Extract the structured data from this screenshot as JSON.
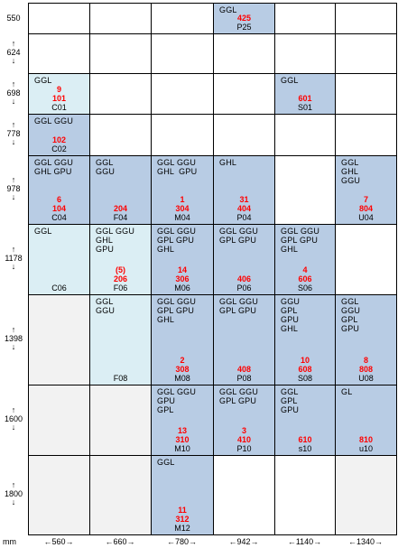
{
  "unit_label": "mm",
  "row_labels": [
    "550",
    "624",
    "698",
    "778",
    "978",
    "1178",
    "1398",
    "1600",
    "1800"
  ],
  "col_labels": [
    "←560→",
    "←660→",
    "←780→",
    "←942→",
    "←1140→",
    "←1340→"
  ],
  "cells": [
    {
      "row": 0,
      "col": 3,
      "fill": "blue",
      "tags": [
        "GGL"
      ],
      "red": [
        "425"
      ],
      "code": "P25"
    },
    {
      "row": 2,
      "col": 0,
      "fill": "light",
      "tags": [
        "GGL"
      ],
      "red": [
        "9",
        "101"
      ],
      "code": "C01"
    },
    {
      "row": 2,
      "col": 4,
      "fill": "blue",
      "tags": [
        "GGL"
      ],
      "red": [
        "601"
      ],
      "code": "S01"
    },
    {
      "row": 3,
      "col": 0,
      "fill": "blue",
      "tags": [
        "GGL GGU"
      ],
      "red": [
        "102"
      ],
      "code": "C02"
    },
    {
      "row": 4,
      "col": 0,
      "fill": "blue",
      "tags": [
        "GGL GGU",
        "GHL GPU"
      ],
      "red": [
        "6",
        "104"
      ],
      "code": "C04"
    },
    {
      "row": 4,
      "col": 1,
      "fill": "blue",
      "tags": [
        "GGL",
        "GGU"
      ],
      "red": [
        "204"
      ],
      "code": "F04"
    },
    {
      "row": 4,
      "col": 2,
      "fill": "blue",
      "tags": [
        "GGL GGU",
        "GHL  GPU"
      ],
      "red": [
        "1",
        "304"
      ],
      "code": "M04"
    },
    {
      "row": 4,
      "col": 3,
      "fill": "blue",
      "tags": [
        "GHL"
      ],
      "red": [
        "31",
        "404"
      ],
      "code": "P04"
    },
    {
      "row": 4,
      "col": 5,
      "fill": "blue",
      "tags": [
        "GGL",
        "GHL",
        "GGU"
      ],
      "red": [
        "7",
        "804"
      ],
      "code": "U04"
    },
    {
      "row": 5,
      "col": 0,
      "fill": "light",
      "tags": [
        "GGL"
      ],
      "red": [],
      "code": "C06"
    },
    {
      "row": 5,
      "col": 1,
      "fill": "light",
      "tags": [
        "GGL GGU",
        "GHL",
        "GPU"
      ],
      "red": [
        "(5)",
        "206"
      ],
      "code": "F06"
    },
    {
      "row": 5,
      "col": 2,
      "fill": "blue",
      "tags": [
        "GGL GGU",
        "GPL GPU",
        "GHL"
      ],
      "red": [
        "14",
        "306"
      ],
      "code": "M06"
    },
    {
      "row": 5,
      "col": 3,
      "fill": "blue",
      "tags": [
        "GGL GGU",
        "GPL GPU"
      ],
      "red": [
        "406"
      ],
      "code": "P06"
    },
    {
      "row": 5,
      "col": 4,
      "fill": "blue",
      "tags": [
        "GGL GGU",
        "GPL GPU",
        "GHL"
      ],
      "red": [
        "4",
        "606"
      ],
      "code": "S06"
    },
    {
      "row": 6,
      "col": 0,
      "fill": "gray",
      "tags": [],
      "red": [],
      "code": ""
    },
    {
      "row": 6,
      "col": 1,
      "fill": "light",
      "tags": [
        "GGL",
        "GGU"
      ],
      "red": [],
      "code": "F08"
    },
    {
      "row": 6,
      "col": 2,
      "fill": "blue",
      "tags": [
        "GGL GGU",
        "GPL GPU",
        "GHL"
      ],
      "red": [
        "2",
        "308"
      ],
      "code": "M08"
    },
    {
      "row": 6,
      "col": 3,
      "fill": "blue",
      "tags": [
        "GGL GGU",
        "GPL GPU"
      ],
      "red": [
        "408"
      ],
      "code": "P08"
    },
    {
      "row": 6,
      "col": 4,
      "fill": "blue",
      "tags": [
        "GGU",
        "GPL",
        "GPU",
        "GHL"
      ],
      "red": [
        "10",
        "608"
      ],
      "code": "S08"
    },
    {
      "row": 6,
      "col": 5,
      "fill": "blue",
      "tags": [
        "GGL",
        "GGU",
        "GPL",
        "GPU"
      ],
      "red": [
        "8",
        "808"
      ],
      "code": "U08"
    },
    {
      "row": 7,
      "col": 0,
      "fill": "gray",
      "tags": [],
      "red": [],
      "code": ""
    },
    {
      "row": 7,
      "col": 1,
      "fill": "gray",
      "tags": [],
      "red": [],
      "code": ""
    },
    {
      "row": 7,
      "col": 2,
      "fill": "blue",
      "tags": [
        "GGL GGU",
        "GPU",
        "GPL"
      ],
      "red": [
        "13",
        "310"
      ],
      "code": "M10"
    },
    {
      "row": 7,
      "col": 3,
      "fill": "blue",
      "tags": [
        "GGL GGU",
        "GPL GPU"
      ],
      "red": [
        "3",
        "410"
      ],
      "code": "P10"
    },
    {
      "row": 7,
      "col": 4,
      "fill": "blue",
      "tags": [
        "GGL",
        "GPL",
        "GPU"
      ],
      "red": [
        "610"
      ],
      "code": "s10"
    },
    {
      "row": 7,
      "col": 5,
      "fill": "blue",
      "tags": [
        "GL"
      ],
      "red": [
        "810"
      ],
      "code": "u10"
    },
    {
      "row": 8,
      "col": 0,
      "fill": "gray",
      "tags": [],
      "red": [],
      "code": ""
    },
    {
      "row": 8,
      "col": 1,
      "fill": "gray",
      "tags": [],
      "red": [],
      "code": ""
    },
    {
      "row": 8,
      "col": 2,
      "fill": "blue",
      "tags": [
        "GGL"
      ],
      "red": [
        "11",
        "312"
      ],
      "code": "M12"
    },
    {
      "row": 8,
      "col": 5,
      "fill": "gray",
      "tags": [],
      "red": [],
      "code": ""
    }
  ]
}
